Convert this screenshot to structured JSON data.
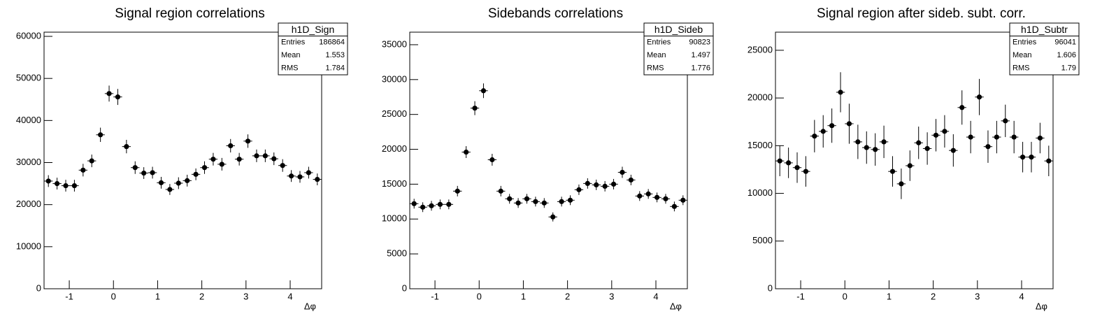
{
  "chart_data": [
    {
      "type": "errorbar",
      "title": "Signal region correlations",
      "xlabel": "Δφ",
      "color": "#000000",
      "xlim": [
        -1.5708,
        4.7124
      ],
      "ylim": [
        0,
        61000
      ],
      "xticks": [
        -1,
        0,
        1,
        2,
        3,
        4
      ],
      "yticks": [
        0,
        10000,
        20000,
        30000,
        40000,
        50000,
        60000
      ],
      "x": [
        -1.4726,
        -1.2763,
        -1.0799,
        -0.8836,
        -0.6872,
        -0.4909,
        -0.2945,
        -0.0982,
        0.0982,
        0.2945,
        0.4909,
        0.6872,
        0.8836,
        1.0799,
        1.2763,
        1.4726,
        1.669,
        1.8653,
        2.0617,
        2.258,
        2.4544,
        2.6507,
        2.8471,
        3.0434,
        3.2398,
        3.4361,
        3.6325,
        3.8288,
        4.0252,
        4.2215,
        4.4179,
        4.6142
      ],
      "values": [
        25600,
        25000,
        24500,
        24500,
        28200,
        30400,
        36600,
        46400,
        45600,
        33800,
        28800,
        27500,
        27600,
        25200,
        23600,
        25100,
        25700,
        27200,
        28800,
        30800,
        29600,
        34000,
        30800,
        35100,
        31600,
        31600,
        30900,
        29300,
        26800,
        26600,
        27600,
        26000
      ],
      "errors": [
        1400,
        1400,
        1400,
        1400,
        1500,
        1500,
        1700,
        1900,
        1900,
        1600,
        1500,
        1400,
        1400,
        1400,
        1300,
        1400,
        1400,
        1400,
        1500,
        1500,
        1500,
        1600,
        1500,
        1600,
        1500,
        1500,
        1500,
        1500,
        1400,
        1400,
        1400,
        1400
      ],
      "stats": {
        "name": "h1D_Sign",
        "rows": [
          {
            "label": "Entries",
            "value": 186864
          },
          {
            "label": "Mean",
            "value": 1.553
          },
          {
            "label": "RMS",
            "value": 1.784
          }
        ]
      }
    },
    {
      "type": "errorbar",
      "title": "Sidebands correlations",
      "xlabel": "Δφ",
      "color": "#000000",
      "xlim": [
        -1.5708,
        4.7124
      ],
      "ylim": [
        0,
        36800
      ],
      "xticks": [
        -1,
        0,
        1,
        2,
        3,
        4
      ],
      "yticks": [
        0,
        5000,
        10000,
        15000,
        20000,
        25000,
        30000,
        35000
      ],
      "x": [
        -1.4726,
        -1.2763,
        -1.0799,
        -0.8836,
        -0.6872,
        -0.4909,
        -0.2945,
        -0.0982,
        0.0982,
        0.2945,
        0.4909,
        0.6872,
        0.8836,
        1.0799,
        1.2763,
        1.4726,
        1.669,
        1.8653,
        2.0617,
        2.258,
        2.4544,
        2.6507,
        2.8471,
        3.0434,
        3.2398,
        3.4361,
        3.6325,
        3.8288,
        4.0252,
        4.2215,
        4.4179,
        4.6142
      ],
      "values": [
        12200,
        11700,
        11900,
        12100,
        12100,
        14000,
        19600,
        25900,
        28400,
        18500,
        14000,
        12900,
        12300,
        12900,
        12500,
        12300,
        10300,
        12500,
        12700,
        14200,
        15100,
        14900,
        14700,
        15000,
        16700,
        15600,
        13300,
        13600,
        13100,
        12900,
        11800,
        12700
      ],
      "errors": [
        700,
        700,
        700,
        700,
        700,
        750,
        850,
        1000,
        1050,
        850,
        750,
        700,
        700,
        700,
        700,
        700,
        650,
        700,
        700,
        750,
        750,
        750,
        750,
        750,
        800,
        750,
        700,
        700,
        700,
        700,
        700,
        700
      ],
      "stats": {
        "name": "h1D_Sideb",
        "rows": [
          {
            "label": "Entries",
            "value": 90823
          },
          {
            "label": "Mean",
            "value": 1.497
          },
          {
            "label": "RMS",
            "value": 1.776
          }
        ]
      }
    },
    {
      "type": "errorbar",
      "title": "Signal region after sideb. subt. corr.",
      "xlabel": "Δφ",
      "color": "#000000",
      "xlim": [
        -1.5708,
        4.7124
      ],
      "ylim": [
        0,
        26900
      ],
      "xticks": [
        -1,
        0,
        1,
        2,
        3,
        4
      ],
      "yticks": [
        0,
        5000,
        10000,
        15000,
        20000,
        25000
      ],
      "x": [
        -1.4726,
        -1.2763,
        -1.0799,
        -0.8836,
        -0.6872,
        -0.4909,
        -0.2945,
        -0.0982,
        0.0982,
        0.2945,
        0.4909,
        0.6872,
        0.8836,
        1.0799,
        1.2763,
        1.4726,
        1.669,
        1.8653,
        2.0617,
        2.258,
        2.4544,
        2.6507,
        2.8471,
        3.0434,
        3.2398,
        3.4361,
        3.6325,
        3.8288,
        4.0252,
        4.2215,
        4.4179,
        4.6142
      ],
      "values": [
        13400,
        13200,
        12700,
        12300,
        16000,
        16500,
        17100,
        20600,
        17300,
        15400,
        14800,
        14600,
        15400,
        12300,
        11000,
        12900,
        15300,
        14700,
        16100,
        16500,
        14500,
        19000,
        15900,
        20100,
        14900,
        15900,
        17600,
        15900,
        13800,
        13800,
        15800,
        13400
      ],
      "errors": [
        1600,
        1600,
        1600,
        1600,
        1700,
        1700,
        1800,
        2100,
        2100,
        1800,
        1700,
        1700,
        1700,
        1600,
        1600,
        1600,
        1700,
        1700,
        1700,
        1700,
        1700,
        1800,
        1700,
        1900,
        1700,
        1700,
        1700,
        1700,
        1600,
        1600,
        1600,
        1600
      ],
      "stats": {
        "name": "h1D_Subtr",
        "rows": [
          {
            "label": "Entries",
            "value": 96041
          },
          {
            "label": "Mean",
            "value": 1.606
          },
          {
            "label": "RMS",
            "value": 1.79
          }
        ]
      }
    }
  ]
}
